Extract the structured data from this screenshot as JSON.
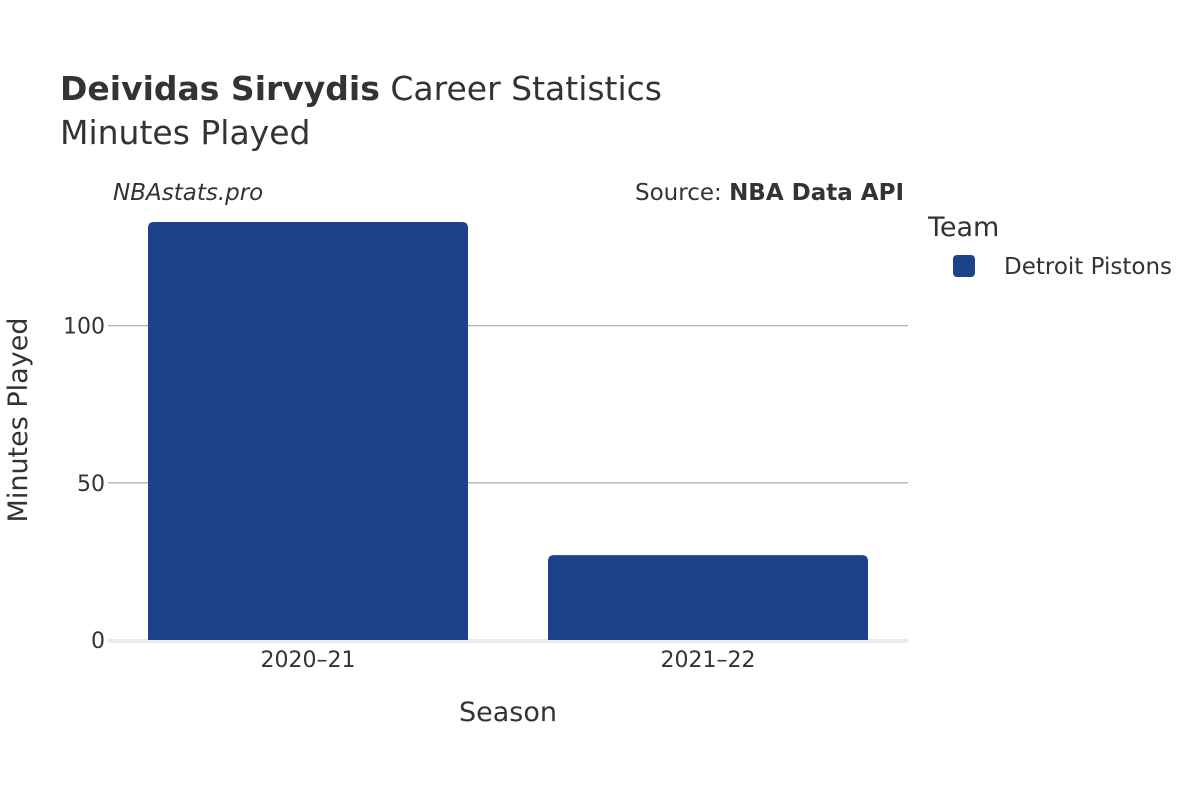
{
  "header": {
    "player_name": "Deividas Sirvydis",
    "title_suffix": " Career Statistics",
    "subtitle": "Minutes Played"
  },
  "watermark": "NBAstats.pro",
  "source": {
    "prefix": "Source: ",
    "name": "NBA Data API"
  },
  "legend": {
    "title": "Team",
    "items": [
      {
        "label": "Detroit Pistons",
        "color": "#1d428a"
      }
    ]
  },
  "chart_data": {
    "type": "bar",
    "categories": [
      "2020–21",
      "2021–22"
    ],
    "series": [
      {
        "name": "Detroit Pistons",
        "color": "#1d428a",
        "values": [
          133,
          27
        ]
      }
    ],
    "xlabel": "Season",
    "ylabel": "Minutes Played",
    "ylim": [
      0,
      140
    ],
    "yticks": [
      0,
      50,
      100
    ],
    "grid": true,
    "legend_position": "right"
  }
}
